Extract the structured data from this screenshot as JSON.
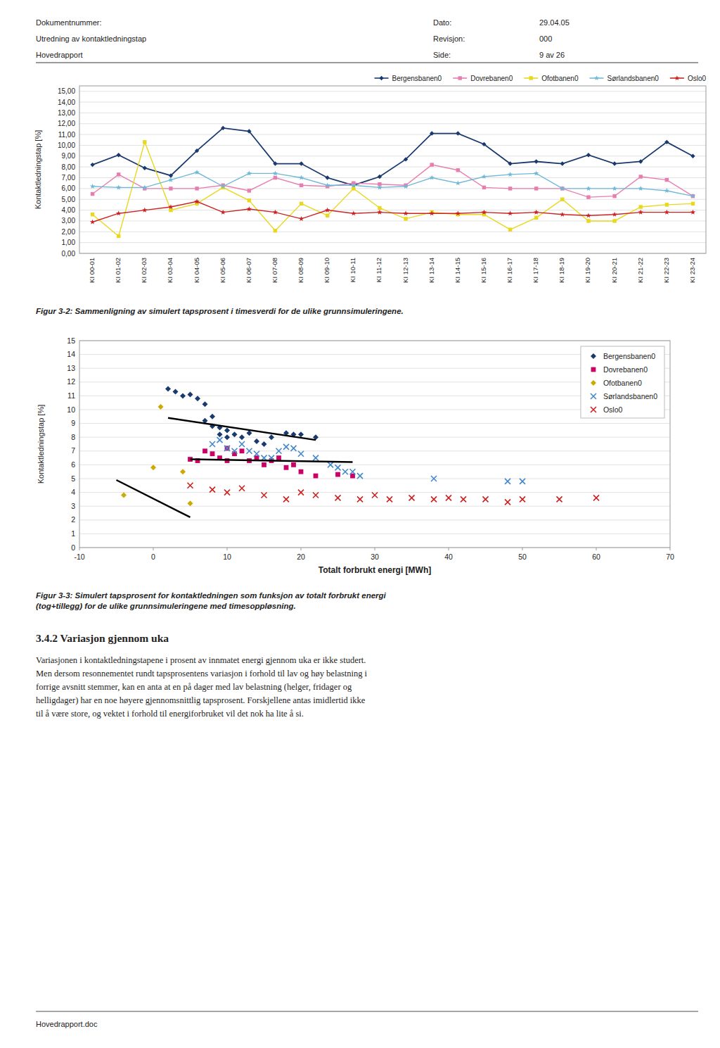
{
  "page": {
    "header": {
      "left_lines": [
        "Dokumentnummer:",
        "Utredning av kontaktledningstap",
        "Hovedrapport"
      ],
      "right_labels": [
        "Dato:",
        "Revisjon:",
        "Side:"
      ],
      "right_values": [
        "29.04.05",
        "000",
        "9 av 26"
      ]
    },
    "section": {
      "title": "3.4.2  Variasjon gjennom uka",
      "body": "Variasjonen i kontaktledningstapene i prosent av innmatet energi gjennom uka er ikke studert.\nMen dersom resonnementet rundt tapsprosentens variasjon i forhold til lav og høy belastning i\nforrige avsnitt stemmer, kan en anta at en på dager med lav belastning (helger, fridager og\nhelligdager) har en noe høyere gjennomsnittlig tapsprosent. Forskjellene antas imidlertid ikke\ntil å være store, og vektet i forhold til energiforbruket vil det nok ha lite å si."
    },
    "footer": "Hovedrapport.doc"
  },
  "chart_data": [
    {
      "type": "line",
      "y_label": "Kontaktledningstap [%]",
      "caption": "Figur 3-2: Sammenligning av simulert tapsprosent i timesverdi for de ulike grunnsimuleringene.",
      "categories": [
        "KI 00-01",
        "KI 01-02",
        "KI 02-03",
        "KI 03-04",
        "KI 04-05",
        "KI 05-06",
        "KI 06-07",
        "KI 07-08",
        "KI 08-09",
        "KI 09-10",
        "KI 10-11",
        "KI 11-12",
        "KI 12-13",
        "KI 13-14",
        "KI 14-15",
        "KI 15-16",
        "KI 16-17",
        "KI 17-18",
        "KI 18-19",
        "KI 19-20",
        "KI 20-21",
        "KI 21-22",
        "KI 22-23",
        "KI 23-24"
      ],
      "ylim": [
        0.0,
        15.5
      ],
      "yticks": [
        {
          "value": 0.0,
          "label": "0,00"
        },
        {
          "value": 1.0,
          "label": "1,00"
        },
        {
          "value": 2.0,
          "label": "2,00"
        },
        {
          "value": 3.0,
          "label": "3,00"
        },
        {
          "value": 4.0,
          "label": "4,00"
        },
        {
          "value": 5.0,
          "label": "5,00"
        },
        {
          "value": 6.0,
          "label": "6,00"
        },
        {
          "value": 7.0,
          "label": "7,00"
        },
        {
          "value": 8.0,
          "label": "8,00"
        },
        {
          "value": 9.0,
          "label": "9,00"
        },
        {
          "value": 10.0,
          "label": "10,00"
        },
        {
          "value": 11.0,
          "label": "11,00"
        },
        {
          "value": 12.0,
          "label": "12,00"
        },
        {
          "value": 13.0,
          "label": "13,00"
        },
        {
          "value": 14.0,
          "label": "14,00"
        },
        {
          "value": 15.0,
          "label": "15,00"
        }
      ],
      "grid": true,
      "legend": "upper right",
      "series": [
        {
          "name": "Bergensbanen0",
          "color": "#1a3a6e",
          "marker": "diamond",
          "values": [
            8.2,
            9.1,
            7.9,
            7.2,
            9.5,
            11.6,
            11.3,
            8.3,
            8.3,
            7.0,
            6.3,
            7.1,
            8.7,
            11.1,
            11.1,
            10.1,
            8.3,
            8.5,
            8.3,
            9.1,
            8.3,
            8.5,
            10.3,
            9.0
          ]
        },
        {
          "name": "Dovrebanen0",
          "color": "#e87eb0",
          "marker": "square",
          "values": [
            5.5,
            7.3,
            6.0,
            6.0,
            6.0,
            6.3,
            5.8,
            7.0,
            6.3,
            6.2,
            6.5,
            6.4,
            6.3,
            8.2,
            7.7,
            6.1,
            6.0,
            6.0,
            6.0,
            5.2,
            5.3,
            7.1,
            6.8,
            5.3
          ]
        },
        {
          "name": "Ofotbanen0",
          "color": "#e8d820",
          "marker": "square",
          "values": [
            3.6,
            1.6,
            10.3,
            4.0,
            4.6,
            6.1,
            4.9,
            2.1,
            4.6,
            3.5,
            6.0,
            4.2,
            3.2,
            3.8,
            3.6,
            3.6,
            2.2,
            3.3,
            5.0,
            3.0,
            3.0,
            4.3,
            4.5,
            4.6
          ]
        },
        {
          "name": "Sørlandsbanen0",
          "color": "#70b8d8",
          "marker": "star",
          "values": [
            6.2,
            6.1,
            6.1,
            6.8,
            7.5,
            6.2,
            7.4,
            7.4,
            7.0,
            6.3,
            6.3,
            6.1,
            6.2,
            7.0,
            6.5,
            7.1,
            7.3,
            7.4,
            6.0,
            6.0,
            6.0,
            6.0,
            5.8,
            5.3
          ]
        },
        {
          "name": "Oslo0",
          "color": "#cc2222",
          "marker": "star",
          "values": [
            2.9,
            3.7,
            4.0,
            4.3,
            4.8,
            3.8,
            4.1,
            3.8,
            3.2,
            4.0,
            3.7,
            3.8,
            3.7,
            3.7,
            3.7,
            3.8,
            3.7,
            3.8,
            3.6,
            3.5,
            3.6,
            3.8,
            3.8,
            3.8
          ]
        }
      ]
    },
    {
      "type": "scatter",
      "x_label": "Totalt forbrukt energi [MWh]",
      "y_label": "Kontaktledningstap [%]",
      "caption": "Figur 3-3: Simulert tapsprosent for kontaktledningen som funksjon av totalt forbrukt energi\n(tog+tillegg) for de ulike grunnsimuleringene med timesoppløsning.",
      "xlim": [
        -10,
        70
      ],
      "ylim": [
        0,
        15
      ],
      "xticks": [
        -10,
        0,
        10,
        20,
        30,
        40,
        50,
        60,
        70
      ],
      "yticks": [
        0,
        1,
        2,
        3,
        4,
        5,
        6,
        7,
        8,
        9,
        10,
        11,
        12,
        13,
        14,
        15
      ],
      "grid": true,
      "legend": "upper right",
      "series": [
        {
          "name": "Bergensbanen0",
          "color": "#1a3a6e",
          "marker": "diamond",
          "x": [
            2,
            3,
            4,
            5,
            6,
            7,
            7,
            8,
            8,
            9,
            9,
            10,
            10,
            11,
            12,
            13,
            14,
            15,
            16,
            18,
            19,
            20,
            22
          ],
          "values": [
            11.5,
            11.3,
            11.0,
            11.1,
            10.8,
            10.4,
            9.2,
            9.5,
            8.8,
            8.7,
            8.2,
            8.5,
            8.0,
            8.2,
            8.0,
            8.3,
            7.7,
            7.5,
            8.0,
            8.3,
            8.2,
            8.2,
            8.0
          ]
        },
        {
          "name": "Dovrebanen0",
          "color": "#cc0066",
          "marker": "square",
          "x": [
            5,
            6,
            7,
            8,
            9,
            10,
            10,
            11,
            12,
            13,
            14,
            15,
            16,
            17,
            18,
            19,
            20,
            22,
            25,
            27
          ],
          "values": [
            6.4,
            6.3,
            7.0,
            6.8,
            6.5,
            7.2,
            6.3,
            6.8,
            7.0,
            6.3,
            6.5,
            6.0,
            6.3,
            6.5,
            5.8,
            6.0,
            5.5,
            5.2,
            5.3,
            5.2
          ]
        },
        {
          "name": "Ofotbanen0",
          "color": "#ccaa00",
          "marker": "diamond",
          "x": [
            -4,
            0,
            1,
            4,
            5
          ],
          "values": [
            3.8,
            5.8,
            10.2,
            5.5,
            3.2
          ]
        },
        {
          "name": "Sørlandsbanen0",
          "color": "#4488cc",
          "marker": "x",
          "x": [
            8,
            9,
            10,
            11,
            12,
            13,
            14,
            15,
            16,
            17,
            18,
            19,
            20,
            22,
            24,
            25,
            26,
            27,
            28,
            38,
            48,
            50
          ],
          "values": [
            7.5,
            7.8,
            7.2,
            7.0,
            7.5,
            7.0,
            6.8,
            6.5,
            6.5,
            7.0,
            7.3,
            7.2,
            6.8,
            6.5,
            6.0,
            5.8,
            5.5,
            5.5,
            5.2,
            5.0,
            4.8,
            4.8
          ]
        },
        {
          "name": "Oslo0",
          "color": "#cc2222",
          "marker": "x",
          "x": [
            5,
            8,
            10,
            12,
            15,
            18,
            20,
            22,
            25,
            28,
            30,
            32,
            35,
            38,
            40,
            42,
            45,
            48,
            50,
            55,
            60
          ],
          "values": [
            4.5,
            4.2,
            4.0,
            4.3,
            3.8,
            3.5,
            4.0,
            3.8,
            3.6,
            3.5,
            3.8,
            3.5,
            3.6,
            3.5,
            3.6,
            3.5,
            3.5,
            3.3,
            3.5,
            3.5,
            3.6
          ]
        }
      ],
      "trend_lines": [
        {
          "x": [
            2,
            22
          ],
          "y": [
            9.4,
            7.8
          ],
          "color": "black"
        },
        {
          "x": [
            5,
            27
          ],
          "y": [
            6.4,
            6.2
          ],
          "color": "black"
        },
        {
          "x": [
            -5,
            5
          ],
          "y": [
            4.9,
            2.2
          ],
          "color": "black"
        }
      ]
    }
  ]
}
